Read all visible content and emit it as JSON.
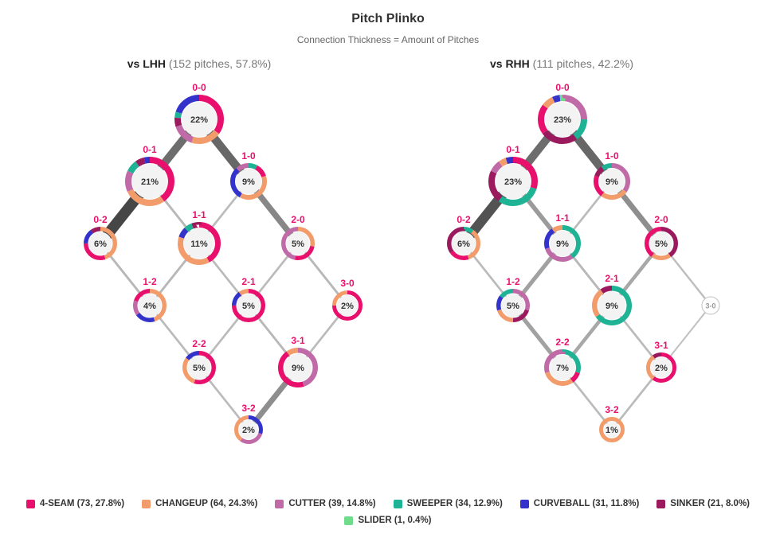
{
  "title": "Pitch Plinko",
  "subtitle": "Connection Thickness = Amount of Pitches",
  "colors": {
    "4-SEAM": "#e8106c",
    "CHANGEUP": "#f39c6b",
    "CUTTER": "#c06aa8",
    "SWEEPER": "#1db394",
    "CURVEBALL": "#3333cc",
    "SINKER": "#9b1a5e",
    "SLIDER": "#6fdc8c"
  },
  "legend": [
    {
      "pitch": "4-SEAM",
      "label": "4-SEAM (73, 27.8%)"
    },
    {
      "pitch": "CHANGEUP",
      "label": "CHANGEUP (64, 24.3%)"
    },
    {
      "pitch": "CUTTER",
      "label": "CUTTER (39, 14.8%)"
    },
    {
      "pitch": "SWEEPER",
      "label": "SWEEPER (34, 12.9%)"
    },
    {
      "pitch": "CURVEBALL",
      "label": "CURVEBALL (31, 11.8%)"
    },
    {
      "pitch": "SINKER",
      "label": "SINKER (21, 8.0%)"
    },
    {
      "pitch": "SLIDER",
      "label": "SLIDER (1, 0.4%)"
    }
  ],
  "panels": [
    {
      "id": "lhh",
      "vs": "vs LHH",
      "info": "(152 pitches, 57.8%)",
      "counts": {
        "0-0": {
          "pct": "22%",
          "mix": [
            [
              "4-SEAM",
              0.35
            ],
            [
              "CHANGEUP",
              0.2
            ],
            [
              "CUTTER",
              0.15
            ],
            [
              "SINKER",
              0.06
            ],
            [
              "SWEEPER",
              0.04
            ],
            [
              "CURVEBALL",
              0.2
            ]
          ]
        },
        "0-1": {
          "pct": "21%",
          "mix": [
            [
              "4-SEAM",
              0.4
            ],
            [
              "CHANGEUP",
              0.28
            ],
            [
              "CUTTER",
              0.14
            ],
            [
              "SWEEPER",
              0.08
            ],
            [
              "SINKER",
              0.06
            ],
            [
              "CURVEBALL",
              0.04
            ]
          ]
        },
        "1-0": {
          "pct": "9%",
          "mix": [
            [
              "SWEEPER",
              0.08
            ],
            [
              "4-SEAM",
              0.12
            ],
            [
              "CHANGEUP",
              0.38
            ],
            [
              "CURVEBALL",
              0.3
            ],
            [
              "CUTTER",
              0.12
            ]
          ]
        },
        "0-2": {
          "pct": "6%",
          "mix": [
            [
              "CHANGEUP",
              0.45
            ],
            [
              "4-SEAM",
              0.3
            ],
            [
              "CURVEBALL",
              0.15
            ],
            [
              "SINKER",
              0.1
            ]
          ]
        },
        "1-1": {
          "pct": "11%",
          "mix": [
            [
              "4-SEAM",
              0.42
            ],
            [
              "CHANGEUP",
              0.38
            ],
            [
              "CURVEBALL",
              0.08
            ],
            [
              "SWEEPER",
              0.06
            ],
            [
              "SINKER",
              0.06
            ]
          ]
        },
        "2-0": {
          "pct": "5%",
          "mix": [
            [
              "CHANGEUP",
              0.28
            ],
            [
              "4-SEAM",
              0.25
            ],
            [
              "CUTTER",
              0.47
            ]
          ]
        },
        "1-2": {
          "pct": "4%",
          "mix": [
            [
              "CHANGEUP",
              0.45
            ],
            [
              "CURVEBALL",
              0.2
            ],
            [
              "CUTTER",
              0.15
            ],
            [
              "4-SEAM",
              0.2
            ]
          ]
        },
        "2-1": {
          "pct": "5%",
          "mix": [
            [
              "4-SEAM",
              0.75
            ],
            [
              "CURVEBALL",
              0.15
            ],
            [
              "CHANGEUP",
              0.1
            ]
          ]
        },
        "3-0": {
          "pct": "2%",
          "mix": [
            [
              "4-SEAM",
              0.75
            ],
            [
              "CHANGEUP",
              0.25
            ]
          ]
        },
        "2-2": {
          "pct": "5%",
          "mix": [
            [
              "4-SEAM",
              0.55
            ],
            [
              "CHANGEUP",
              0.3
            ],
            [
              "CURVEBALL",
              0.15
            ]
          ]
        },
        "3-1": {
          "pct": "9%",
          "mix": [
            [
              "CUTTER",
              0.45
            ],
            [
              "4-SEAM",
              0.45
            ],
            [
              "CHANGEUP",
              0.1
            ]
          ]
        },
        "3-2": {
          "pct": "2%",
          "mix": [
            [
              "CURVEBALL",
              0.3
            ],
            [
              "CUTTER",
              0.3
            ],
            [
              "CHANGEUP",
              0.4
            ]
          ]
        }
      },
      "links": [
        {
          "from": "0-0",
          "to": "0-1",
          "weight": 0.7
        },
        {
          "from": "0-0",
          "to": "1-0",
          "weight": 0.75
        },
        {
          "from": "0-1",
          "to": "0-2",
          "weight": 1.0
        },
        {
          "from": "0-1",
          "to": "1-1",
          "weight": 0.12
        },
        {
          "from": "1-0",
          "to": "1-1",
          "weight": 0.1
        },
        {
          "from": "1-0",
          "to": "2-0",
          "weight": 0.5
        },
        {
          "from": "0-2",
          "to": "1-2",
          "weight": 0.12
        },
        {
          "from": "1-1",
          "to": "1-2",
          "weight": 0.12
        },
        {
          "from": "1-1",
          "to": "2-1",
          "weight": 0.1
        },
        {
          "from": "2-0",
          "to": "2-1",
          "weight": 0.1
        },
        {
          "from": "2-0",
          "to": "3-0",
          "weight": 0.12
        },
        {
          "from": "1-2",
          "to": "2-2",
          "weight": 0.1
        },
        {
          "from": "2-1",
          "to": "2-2",
          "weight": 0.1
        },
        {
          "from": "2-1",
          "to": "3-1",
          "weight": 0.12
        },
        {
          "from": "3-0",
          "to": "3-1",
          "weight": 0.1
        },
        {
          "from": "2-2",
          "to": "3-2",
          "weight": 0.1
        },
        {
          "from": "3-1",
          "to": "3-2",
          "weight": 0.45
        }
      ]
    },
    {
      "id": "rhh",
      "vs": "vs RHH",
      "info": "(111 pitches, 42.2%)",
      "counts": {
        "0-0": {
          "pct": "23%",
          "mix": [
            [
              "CUTTER",
              0.25
            ],
            [
              "SWEEPER",
              0.15
            ],
            [
              "SINKER",
              0.25
            ],
            [
              "4-SEAM",
              0.2
            ],
            [
              "CHANGEUP",
              0.08
            ],
            [
              "CURVEBALL",
              0.05
            ],
            [
              "SLIDER",
              0.02
            ]
          ]
        },
        "0-1": {
          "pct": "23%",
          "mix": [
            [
              "4-SEAM",
              0.3
            ],
            [
              "SWEEPER",
              0.3
            ],
            [
              "SINKER",
              0.22
            ],
            [
              "CUTTER",
              0.08
            ],
            [
              "CHANGEUP",
              0.05
            ],
            [
              "CURVEBALL",
              0.05
            ]
          ]
        },
        "1-0": {
          "pct": "9%",
          "mix": [
            [
              "CUTTER",
              0.35
            ],
            [
              "CHANGEUP",
              0.25
            ],
            [
              "4-SEAM",
              0.2
            ],
            [
              "SINKER",
              0.1
            ],
            [
              "SWEEPER",
              0.1
            ]
          ]
        },
        "0-2": {
          "pct": "6%",
          "mix": [
            [
              "SWEEPER",
              0.1
            ],
            [
              "CHANGEUP",
              0.35
            ],
            [
              "4-SEAM",
              0.2
            ],
            [
              "SINKER",
              0.35
            ]
          ]
        },
        "1-1": {
          "pct": "9%",
          "mix": [
            [
              "SWEEPER",
              0.4
            ],
            [
              "CUTTER",
              0.3
            ],
            [
              "CURVEBALL",
              0.2
            ],
            [
              "CHANGEUP",
              0.1
            ]
          ]
        },
        "2-0": {
          "pct": "5%",
          "mix": [
            [
              "SINKER",
              0.4
            ],
            [
              "CHANGEUP",
              0.2
            ],
            [
              "4-SEAM",
              0.4
            ]
          ]
        },
        "1-2": {
          "pct": "5%",
          "mix": [
            [
              "CUTTER",
              0.3
            ],
            [
              "SINKER",
              0.2
            ],
            [
              "CHANGEUP",
              0.2
            ],
            [
              "CURVEBALL",
              0.15
            ],
            [
              "SWEEPER",
              0.15
            ]
          ]
        },
        "2-1": {
          "pct": "9%",
          "mix": [
            [
              "SWEEPER",
              0.65
            ],
            [
              "CHANGEUP",
              0.25
            ],
            [
              "SINKER",
              0.1
            ]
          ]
        },
        "2-2": {
          "pct": "7%",
          "mix": [
            [
              "SWEEPER",
              0.3
            ],
            [
              "4-SEAM",
              0.1
            ],
            [
              "CHANGEUP",
              0.3
            ],
            [
              "CUTTER",
              0.3
            ]
          ]
        },
        "3-1": {
          "pct": "2%",
          "mix": [
            [
              "4-SEAM",
              0.6
            ],
            [
              "CHANGEUP",
              0.3
            ],
            [
              "SINKER",
              0.1
            ]
          ]
        },
        "3-2": {
          "pct": "1%",
          "mix": [
            [
              "CHANGEUP",
              1.0
            ]
          ]
        },
        "3-0": {
          "pct": "",
          "label": "3-0",
          "empty": true
        }
      },
      "links": [
        {
          "from": "0-0",
          "to": "0-1",
          "weight": 0.7
        },
        {
          "from": "0-0",
          "to": "1-0",
          "weight": 0.75
        },
        {
          "from": "0-1",
          "to": "0-2",
          "weight": 0.9
        },
        {
          "from": "0-1",
          "to": "1-1",
          "weight": 0.35
        },
        {
          "from": "1-0",
          "to": "1-1",
          "weight": 0.1
        },
        {
          "from": "1-0",
          "to": "2-0",
          "weight": 0.45
        },
        {
          "from": "0-2",
          "to": "1-2",
          "weight": 0.1
        },
        {
          "from": "1-1",
          "to": "1-2",
          "weight": 0.3
        },
        {
          "from": "1-1",
          "to": "2-1",
          "weight": 0.12
        },
        {
          "from": "2-0",
          "to": "2-1",
          "weight": 0.25
        },
        {
          "from": "2-0",
          "to": "3-0",
          "weight": 0.08
        },
        {
          "from": "1-2",
          "to": "2-2",
          "weight": 0.3
        },
        {
          "from": "2-1",
          "to": "2-2",
          "weight": 0.25
        },
        {
          "from": "2-1",
          "to": "3-1",
          "weight": 0.1
        },
        {
          "from": "3-0",
          "to": "3-1",
          "weight": 0.05
        },
        {
          "from": "2-2",
          "to": "3-2",
          "weight": 0.1
        },
        {
          "from": "3-1",
          "to": "3-2",
          "weight": 0.1
        }
      ]
    }
  ]
}
